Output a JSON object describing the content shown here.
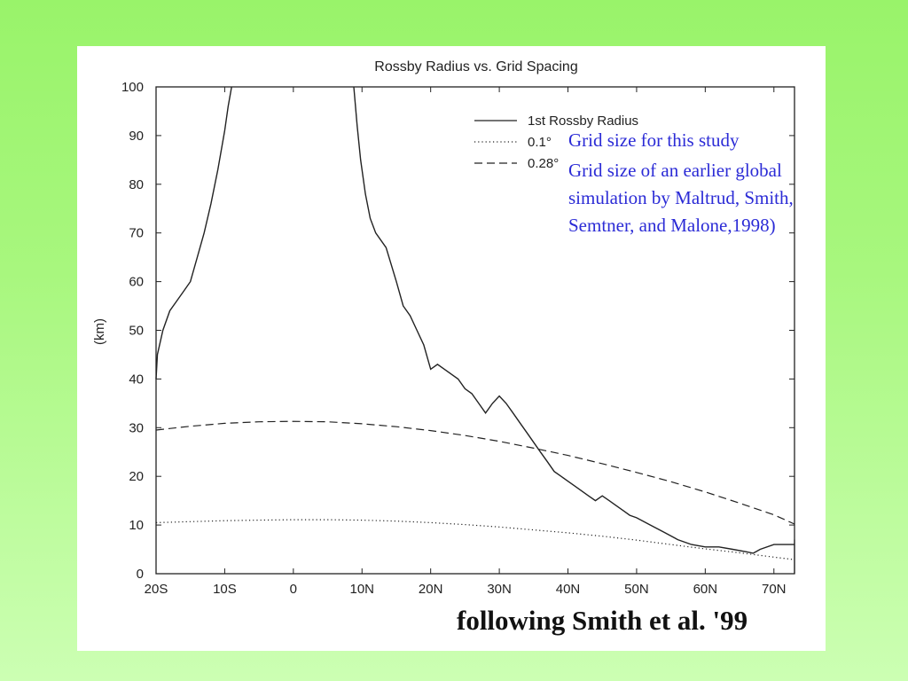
{
  "annotations": {
    "line1": "Grid size for this study",
    "line2": "Grid size of an earlier global",
    "line3": "simulation by Maltrud, Smith,",
    "line4": "Semtner, and Malone,1998)"
  },
  "caption": "following Smith et al. '99",
  "chart_data": {
    "type": "line",
    "title": "Rossby Radius vs. Grid Spacing",
    "xlabel": "",
    "ylabel": "(km)",
    "xlim": [
      -20,
      73
    ],
    "ylim": [
      0,
      100
    ],
    "x_ticks": [
      -20,
      -10,
      0,
      10,
      20,
      30,
      40,
      50,
      60,
      70
    ],
    "x_tick_labels": [
      "20S",
      "10S",
      "0",
      "10N",
      "20N",
      "30N",
      "40N",
      "50N",
      "60N",
      "70N"
    ],
    "y_ticks": [
      0,
      10,
      20,
      30,
      40,
      50,
      60,
      70,
      80,
      90,
      100
    ],
    "y_tick_labels": [
      "0",
      "10",
      "20",
      "30",
      "40",
      "50",
      "60",
      "70",
      "80",
      "90",
      "100"
    ],
    "legend_position": "top-right",
    "grid": false,
    "series": [
      {
        "name": "1st Rossby Radius",
        "style": "solid",
        "segments": [
          [
            [
              -20,
              40
            ],
            [
              -19.8,
              45
            ],
            [
              -19,
              50
            ],
            [
              -18,
              54
            ],
            [
              -17,
              56
            ],
            [
              -16,
              58
            ],
            [
              -15,
              60
            ],
            [
              -14,
              65
            ],
            [
              -13,
              70
            ],
            [
              -12,
              76
            ],
            [
              -11,
              83
            ],
            [
              -10,
              91
            ],
            [
              -9.5,
              96
            ],
            [
              -9,
              100
            ]
          ],
          [
            [
              8.8,
              100
            ],
            [
              9.3,
              92
            ],
            [
              9.8,
              85
            ],
            [
              10.5,
              78
            ],
            [
              11.2,
              73
            ],
            [
              12,
              70
            ],
            [
              13.5,
              67
            ],
            [
              15,
              60
            ],
            [
              16,
              55
            ],
            [
              17,
              53
            ],
            [
              18,
              50
            ],
            [
              19,
              47
            ],
            [
              20,
              42
            ],
            [
              21,
              43
            ],
            [
              22,
              42
            ],
            [
              23,
              41
            ],
            [
              24,
              40
            ],
            [
              25,
              38
            ],
            [
              26,
              37
            ],
            [
              27,
              35
            ],
            [
              28,
              33
            ],
            [
              29,
              35
            ],
            [
              30,
              36.5
            ],
            [
              31,
              35
            ],
            [
              32,
              33
            ],
            [
              33,
              31
            ],
            [
              34,
              29
            ],
            [
              35,
              27
            ],
            [
              36,
              25
            ],
            [
              37,
              23
            ],
            [
              38,
              21
            ],
            [
              39,
              20
            ],
            [
              40,
              19
            ],
            [
              41,
              18
            ],
            [
              42,
              17
            ],
            [
              43,
              16
            ],
            [
              44,
              15
            ],
            [
              45,
              16
            ],
            [
              46,
              15
            ],
            [
              47,
              14
            ],
            [
              48,
              13
            ],
            [
              49,
              12
            ],
            [
              50,
              11.5
            ],
            [
              52,
              10
            ],
            [
              54,
              8.5
            ],
            [
              56,
              7
            ],
            [
              58,
              6
            ],
            [
              60,
              5.5
            ],
            [
              62,
              5.5
            ],
            [
              64,
              5
            ],
            [
              66,
              4.5
            ],
            [
              67,
              4.2
            ],
            [
              68,
              5
            ],
            [
              70,
              6
            ],
            [
              72,
              6
            ],
            [
              73,
              6
            ]
          ]
        ]
      },
      {
        "name": "0.1°",
        "style": "dotted",
        "x": [
          -20,
          -15,
          -10,
          -5,
          0,
          5,
          10,
          15,
          20,
          25,
          30,
          35,
          40,
          45,
          50,
          55,
          60,
          65,
          70,
          73
        ],
        "y": [
          10.5,
          10.7,
          10.9,
          11.0,
          11.1,
          11.1,
          11.0,
          10.8,
          10.5,
          10.1,
          9.6,
          9.0,
          8.4,
          7.7,
          6.9,
          6.0,
          5.1,
          4.3,
          3.4,
          2.9
        ]
      },
      {
        "name": "0.28°",
        "style": "dashed",
        "x": [
          -20,
          -15,
          -10,
          -5,
          0,
          5,
          10,
          15,
          20,
          25,
          30,
          35,
          40,
          45,
          50,
          55,
          60,
          65,
          70,
          73
        ],
        "y": [
          29.5,
          30.3,
          30.9,
          31.2,
          31.3,
          31.2,
          30.8,
          30.2,
          29.4,
          28.4,
          27.2,
          25.8,
          24.3,
          22.6,
          20.8,
          18.9,
          16.8,
          14.5,
          12.1,
          10.2
        ]
      }
    ]
  }
}
